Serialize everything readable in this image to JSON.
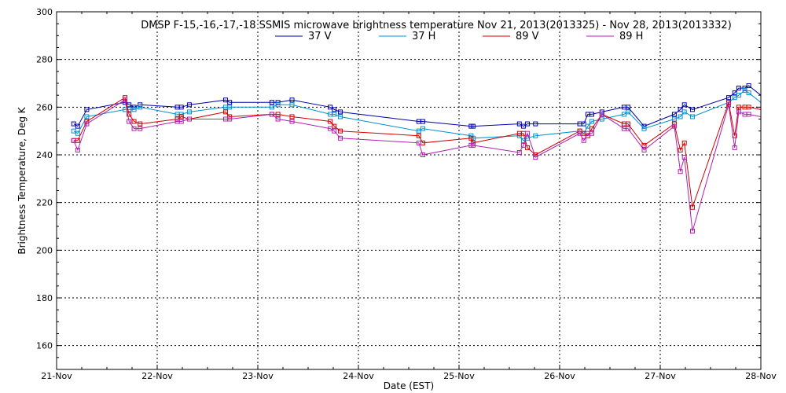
{
  "chart_data": {
    "type": "line",
    "title": "DMSP F-15,-16,-17,-18 SSMIS microwave brightness temperature Nov 21, 2013(2013325) - Nov 28, 2013(2013332)",
    "xlabel": "Date (EST)",
    "ylabel": "Brightness Temperature, Deg K",
    "xlim": [
      0,
      7
    ],
    "ylim": [
      150,
      300
    ],
    "x_tick_values": [
      0,
      1,
      2,
      3,
      4,
      5,
      6,
      7
    ],
    "x_tick_labels": [
      "21-Nov",
      "22-Nov",
      "23-Nov",
      "24-Nov",
      "25-Nov",
      "26-Nov",
      "27-Nov",
      "28-Nov"
    ],
    "y_ticks": [
      160,
      180,
      200,
      220,
      240,
      260,
      280,
      300
    ],
    "grid": true,
    "legend_position": "top-center",
    "marker": "open-square",
    "series": [
      {
        "name": "37 V",
        "color": "#0000aa",
        "x": [
          0.17,
          0.21,
          0.3,
          0.68,
          0.72,
          0.77,
          0.83,
          1.2,
          1.24,
          1.32,
          1.68,
          1.72,
          2.14,
          2.2,
          2.34,
          2.72,
          2.76,
          2.82,
          3.6,
          3.64,
          4.12,
          4.14,
          4.6,
          4.64,
          4.68,
          4.76,
          5.2,
          5.24,
          5.28,
          5.32,
          5.42,
          5.64,
          5.68,
          5.84,
          6.14,
          6.2,
          6.24,
          6.32,
          6.68,
          6.74,
          6.78,
          6.84,
          6.88,
          7.0
        ],
        "y": [
          253,
          252,
          259,
          262,
          261,
          260,
          261,
          260,
          260,
          261,
          263,
          262,
          262,
          262,
          263,
          260,
          259,
          258,
          254,
          254,
          252,
          252,
          253,
          252,
          253,
          253,
          253,
          253,
          257,
          257,
          258,
          260,
          260,
          252,
          257,
          259,
          261,
          259,
          264,
          266,
          268,
          268,
          269,
          265
        ]
      },
      {
        "name": "37 H",
        "color": "#0090d0",
        "x": [
          0.17,
          0.21,
          0.3,
          0.68,
          0.72,
          0.77,
          0.83,
          1.2,
          1.24,
          1.32,
          1.68,
          1.72,
          2.14,
          2.2,
          2.34,
          2.72,
          2.76,
          2.82,
          3.6,
          3.64,
          4.12,
          4.14,
          4.6,
          4.64,
          4.68,
          4.76,
          5.2,
          5.24,
          5.28,
          5.32,
          5.42,
          5.64,
          5.68,
          5.84,
          6.14,
          6.2,
          6.24,
          6.32,
          6.68,
          6.74,
          6.78,
          6.84,
          6.88,
          7.0
        ],
        "y": [
          250,
          249,
          256,
          259,
          259,
          259,
          260,
          257,
          257,
          258,
          260,
          260,
          260,
          261,
          261,
          257,
          257,
          256,
          250,
          251,
          248,
          247,
          248,
          246,
          247,
          248,
          250,
          249,
          252,
          254,
          255,
          257,
          258,
          251,
          255,
          256,
          258,
          256,
          262,
          264,
          265,
          267,
          266,
          262
        ]
      },
      {
        "name": "89 V",
        "color": "#d00000",
        "x": [
          0.17,
          0.21,
          0.3,
          0.68,
          0.72,
          0.77,
          0.83,
          1.2,
          1.24,
          1.32,
          1.68,
          1.72,
          2.14,
          2.2,
          2.34,
          2.72,
          2.76,
          2.82,
          3.6,
          3.64,
          4.12,
          4.14,
          4.6,
          4.64,
          4.68,
          4.76,
          5.2,
          5.24,
          5.28,
          5.32,
          5.42,
          5.64,
          5.68,
          5.84,
          6.14,
          6.2,
          6.24,
          6.32,
          6.68,
          6.74,
          6.78,
          6.84,
          6.88,
          7.0
        ],
        "y": [
          246,
          246,
          254,
          264,
          257,
          254,
          253,
          255,
          256,
          255,
          258,
          256,
          257,
          257,
          256,
          254,
          252,
          250,
          248,
          245,
          247,
          245,
          249,
          249,
          243,
          240,
          250,
          249,
          248,
          251,
          257,
          253,
          253,
          244,
          253,
          242,
          245,
          218,
          262,
          248,
          260,
          260,
          260,
          259
        ]
      },
      {
        "name": "89 H",
        "color": "#b020b0",
        "x": [
          0.17,
          0.21,
          0.3,
          0.68,
          0.72,
          0.77,
          0.83,
          1.2,
          1.24,
          1.32,
          1.68,
          1.72,
          2.14,
          2.2,
          2.34,
          2.72,
          2.76,
          2.82,
          3.6,
          3.64,
          4.12,
          4.14,
          4.6,
          4.64,
          4.68,
          4.76,
          5.2,
          5.24,
          5.28,
          5.32,
          5.42,
          5.64,
          5.68,
          5.84,
          6.14,
          6.2,
          6.24,
          6.32,
          6.68,
          6.74,
          6.78,
          6.84,
          6.88,
          7.0
        ],
        "y": [
          246,
          242,
          253,
          263,
          254,
          251,
          251,
          254,
          254,
          255,
          255,
          255,
          257,
          255,
          254,
          251,
          250,
          247,
          245,
          240,
          244,
          244,
          241,
          244,
          249,
          239,
          249,
          246,
          249,
          249,
          257,
          251,
          251,
          242,
          252,
          233,
          239,
          208,
          261,
          243,
          258,
          257,
          257,
          256
        ]
      }
    ]
  }
}
